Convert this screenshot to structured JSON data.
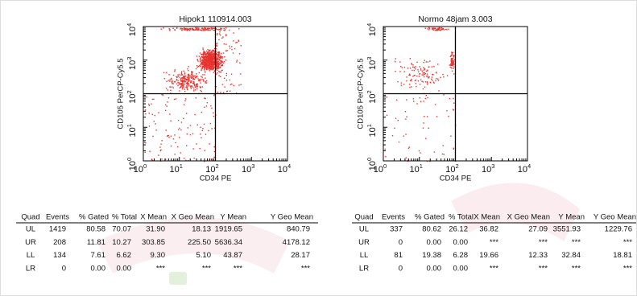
{
  "plots": [
    {
      "title": "Hipok1 110914.003",
      "x_label": "CD34 PE",
      "y_label": "CD105 PerCP-Cy5.5",
      "ticks": [
        {
          "base": "10",
          "exp": "0"
        },
        {
          "base": "10",
          "exp": "1"
        },
        {
          "base": "10",
          "exp": "2"
        },
        {
          "base": "10",
          "exp": "3"
        },
        {
          "base": "10",
          "exp": "4"
        }
      ]
    },
    {
      "title": "Normo 48jam 3.003",
      "x_label": "CD34 PE",
      "y_label": "CD105 PerCP-Cy5.5",
      "ticks": [
        {
          "base": "10",
          "exp": "0"
        },
        {
          "base": "10",
          "exp": "1"
        },
        {
          "base": "10",
          "exp": "2"
        },
        {
          "base": "10",
          "exp": "3"
        },
        {
          "base": "10",
          "exp": "4"
        }
      ]
    }
  ],
  "tables": [
    {
      "headers": [
        "Quad",
        "Events",
        "% Gated",
        "% Total",
        "X Mean",
        "X Geo Mean",
        "Y Mean",
        "Y Geo Mean"
      ],
      "rows": [
        [
          "UL",
          "1419",
          "80.58",
          "70.07",
          "31.90",
          "18.13",
          "1919.65",
          "840.79"
        ],
        [
          "UR",
          "208",
          "11.81",
          "10.27",
          "303.85",
          "225.50",
          "5636.34",
          "4178.12"
        ],
        [
          "LL",
          "134",
          "7.61",
          "6.62",
          "9.30",
          "5.10",
          "43.87",
          "28.17"
        ],
        [
          "LR",
          "0",
          "0.00",
          "0.00",
          "***",
          "***",
          "***",
          "***"
        ]
      ]
    },
    {
      "headers": [
        "Quad",
        "Events",
        "% Gated",
        "% Total",
        "X Mean",
        "X Geo Mean",
        "Y Mean",
        "Y Geo Mean"
      ],
      "rows": [
        [
          "UL",
          "337",
          "80.62",
          "26.12",
          "36.82",
          "27.09",
          "3551.93",
          "1229.76"
        ],
        [
          "UR",
          "0",
          "0.00",
          "0.00",
          "***",
          "***",
          "***",
          "***"
        ],
        [
          "LL",
          "81",
          "19.38",
          "6.28",
          "19.66",
          "12.33",
          "32.84",
          "18.81"
        ],
        [
          "LR",
          "0",
          "0.00",
          "0.00",
          "***",
          "***",
          "***",
          "***"
        ]
      ]
    }
  ]
}
